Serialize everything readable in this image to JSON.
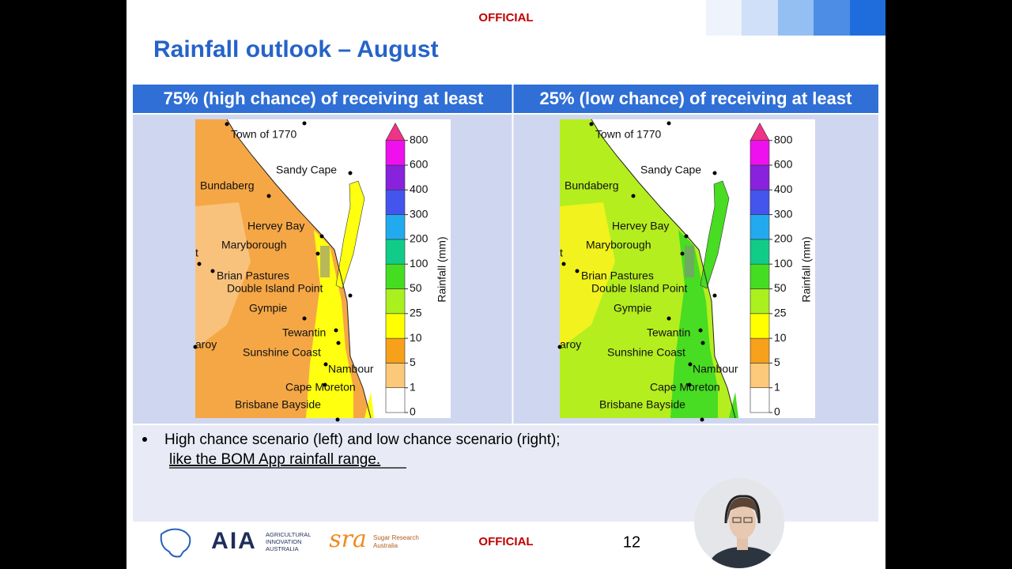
{
  "header": {
    "classification": "OFFICIAL",
    "title": "Rainfall outlook – August"
  },
  "table": {
    "headers": [
      "75% (high chance) of receiving at least",
      "25% (low chance) of receiving at least"
    ],
    "maps": [
      {
        "land": "#f5a746",
        "inland": "#f9c27c",
        "coast": "#ffff10"
      },
      {
        "land": "#b4ee1e",
        "inland": "#f2f21e",
        "coast": "#48dc22"
      }
    ],
    "map_labels": [
      "Town of 1770",
      "Sandy Cape",
      "Bundaberg",
      "Hervey Bay",
      "Maryborough",
      "t",
      "Brian Pastures",
      "Double Island Point",
      "Gympie",
      "Tewantin",
      "aroy",
      "Sunshine Coast",
      "Nambour",
      "Cape Moreton",
      "Brisbane Bayside"
    ],
    "legend": {
      "label": "Rainfall (mm)",
      "ticks": [
        0,
        1,
        5,
        10,
        25,
        50,
        100,
        200,
        300,
        400,
        600,
        800
      ],
      "colors": [
        "#ffffff",
        "#fcc87a",
        "#f7a11a",
        "#ffff00",
        "#aaf01e",
        "#44dd22",
        "#11cc88",
        "#22aaee",
        "#4455ee",
        "#8822dd",
        "#ee11ee",
        "#ee3388"
      ]
    }
  },
  "notes": {
    "bullet": "High chance scenario (left) and low chance scenario (right);",
    "link": "like the BOM App rainfall range."
  },
  "footer": {
    "aia_mark": "AIA",
    "aia_name": [
      "AGRICULTURAL",
      "INNOVATION",
      "AUSTRALIA"
    ],
    "sra_mark": "sra",
    "sra_name": [
      "Sugar Research",
      "Australia"
    ],
    "classification": "OFFICIAL",
    "page": 12
  }
}
